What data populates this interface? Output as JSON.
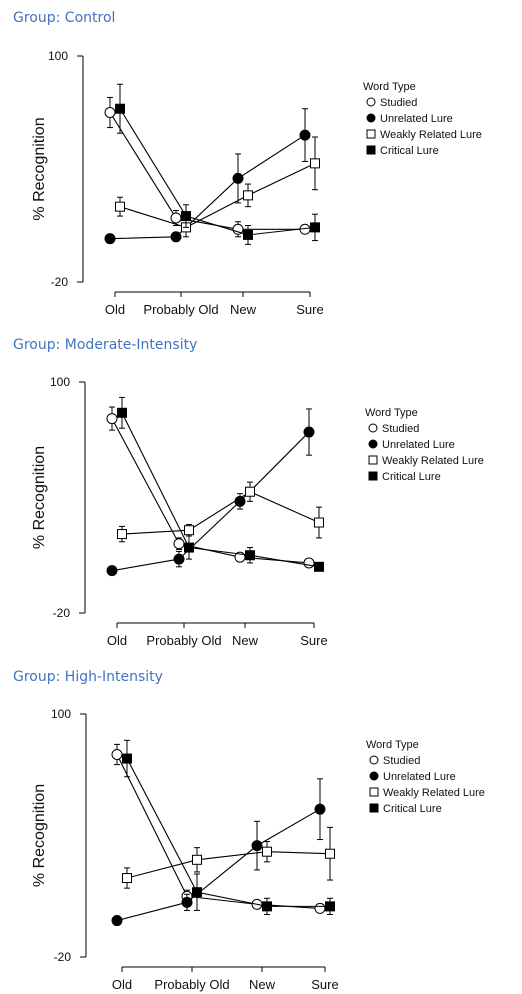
{
  "legend": {
    "title": "Word Type",
    "entries": [
      {
        "name": "Studied",
        "marker": "open-circle"
      },
      {
        "name": "Unrelated Lure",
        "marker": "filled-circle"
      },
      {
        "name": "Weakly Related Lure",
        "marker": "open-square"
      },
      {
        "name": "Critical Lure",
        "marker": "filled-square"
      }
    ]
  },
  "chart_data": [
    {
      "type": "line",
      "group_title": "Group: Control",
      "ylabel": "% Recognition",
      "xlabel": "",
      "categories": [
        "Old",
        "Probably Old",
        "New",
        "Sure"
      ],
      "ylim": [
        -20,
        100
      ],
      "yticks": [
        100,
        -20
      ],
      "legend_position": "right",
      "series": [
        {
          "name": "Studied",
          "marker": "open-circle",
          "values": [
            70,
            14,
            8,
            8
          ],
          "errors": [
            8,
            4,
            4,
            2
          ]
        },
        {
          "name": "Unrelated Lure",
          "marker": "filled-circle",
          "values": [
            3,
            4,
            35,
            58
          ],
          "errors": [
            2,
            2,
            13,
            14
          ]
        },
        {
          "name": "Weakly Related Lure",
          "marker": "open-square",
          "values": [
            20,
            9,
            26,
            43
          ],
          "errors": [
            5,
            5,
            6,
            14
          ]
        },
        {
          "name": "Critical Lure",
          "marker": "filled-square",
          "values": [
            72,
            15,
            5,
            9
          ],
          "errors": [
            13,
            6,
            5,
            7
          ]
        }
      ]
    },
    {
      "type": "line",
      "group_title": "Group: Moderate-Intensity",
      "ylabel": "% Recognition",
      "xlabel": "",
      "categories": [
        "Old",
        "Probably Old",
        "New",
        "Sure"
      ],
      "ylim": [
        -20,
        100
      ],
      "yticks": [
        100,
        -20
      ],
      "legend_position": "right",
      "series": [
        {
          "name": "Studied",
          "marker": "open-circle",
          "values": [
            81,
            16,
            9,
            6
          ],
          "errors": [
            6,
            3,
            2,
            2
          ]
        },
        {
          "name": "Unrelated Lure",
          "marker": "filled-circle",
          "values": [
            2,
            8,
            38,
            74
          ],
          "errors": [
            1,
            4,
            4,
            12
          ]
        },
        {
          "name": "Weakly Related Lure",
          "marker": "open-square",
          "values": [
            21,
            23,
            43,
            27
          ],
          "errors": [
            4,
            3,
            5,
            8
          ]
        },
        {
          "name": "Critical Lure",
          "marker": "filled-square",
          "values": [
            84,
            14,
            10,
            4
          ],
          "errors": [
            8,
            6,
            4,
            1
          ]
        }
      ]
    },
    {
      "type": "line",
      "group_title": "Group: High-Intensity",
      "ylabel": "% Recognition",
      "xlabel": "",
      "categories": [
        "Old",
        "Probably Old",
        "New",
        "Sure"
      ],
      "ylim": [
        -20,
        100
      ],
      "yticks": [
        100,
        -20
      ],
      "legend_position": "right",
      "series": [
        {
          "name": "Studied",
          "marker": "open-circle",
          "values": [
            80,
            10,
            6,
            4
          ],
          "errors": [
            5,
            3,
            2,
            2
          ]
        },
        {
          "name": "Unrelated Lure",
          "marker": "filled-circle",
          "values": [
            -2,
            7,
            35,
            53
          ],
          "errors": [
            1,
            4,
            12,
            15
          ]
        },
        {
          "name": "Weakly Related Lure",
          "marker": "open-square",
          "values": [
            19,
            28,
            32,
            31
          ],
          "errors": [
            5,
            6,
            5,
            13
          ]
        },
        {
          "name": "Critical Lure",
          "marker": "filled-square",
          "values": [
            78,
            12,
            5,
            5
          ],
          "errors": [
            9,
            9,
            4,
            4
          ]
        }
      ]
    }
  ]
}
